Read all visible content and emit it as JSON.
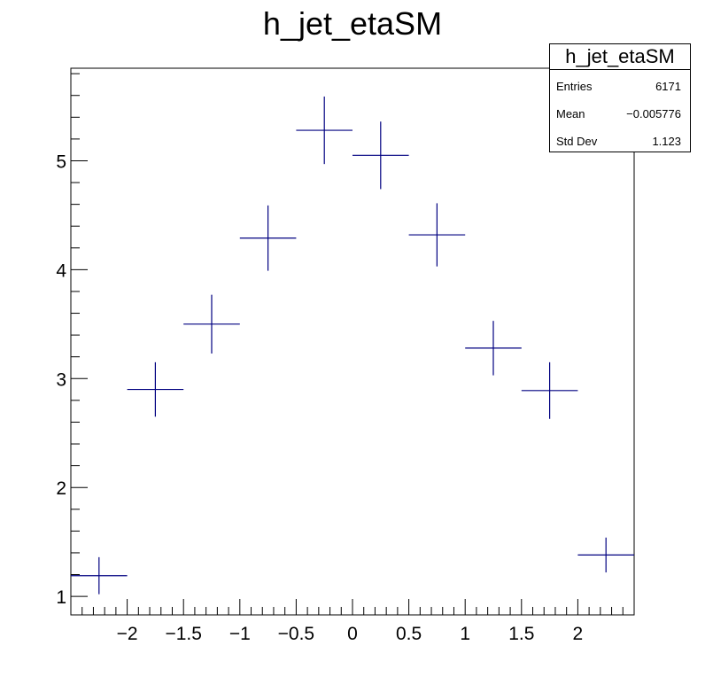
{
  "chart_data": {
    "type": "scatter",
    "title": "h_jet_etaSM",
    "xlabel": "",
    "ylabel": "",
    "xlim": [
      -2.5,
      2.5
    ],
    "ylim": [
      0.83,
      5.85
    ],
    "x_ticks": [
      "−2",
      "−1.5",
      "−1",
      "−0.5",
      "0",
      "0.5",
      "1",
      "1.5",
      "2"
    ],
    "y_ticks": [
      "1",
      "2",
      "3",
      "4",
      "5"
    ],
    "grid": false,
    "marker_color": "#000080",
    "points": [
      {
        "x": -2.25,
        "y": 1.19,
        "xerr": 0.25,
        "yerr": 0.17
      },
      {
        "x": -1.75,
        "y": 2.9,
        "xerr": 0.25,
        "yerr": 0.25
      },
      {
        "x": -1.25,
        "y": 3.5,
        "xerr": 0.25,
        "yerr": 0.27
      },
      {
        "x": -0.75,
        "y": 4.29,
        "xerr": 0.25,
        "yerr": 0.3
      },
      {
        "x": -0.25,
        "y": 5.28,
        "xerr": 0.25,
        "yerr": 0.31
      },
      {
        "x": 0.25,
        "y": 5.05,
        "xerr": 0.25,
        "yerr": 0.31
      },
      {
        "x": 0.75,
        "y": 4.32,
        "xerr": 0.25,
        "yerr": 0.29
      },
      {
        "x": 1.25,
        "y": 3.28,
        "xerr": 0.25,
        "yerr": 0.25
      },
      {
        "x": 1.75,
        "y": 2.89,
        "xerr": 0.25,
        "yerr": 0.26
      },
      {
        "x": 2.25,
        "y": 1.38,
        "xerr": 0.25,
        "yerr": 0.16
      }
    ]
  },
  "stats": {
    "title": "h_jet_etaSM",
    "entries_label": "Entries",
    "entries_value": "6171",
    "mean_label": "Mean",
    "mean_value": "−0.005776",
    "stddev_label": "Std Dev",
    "stddev_value": "1.123"
  }
}
